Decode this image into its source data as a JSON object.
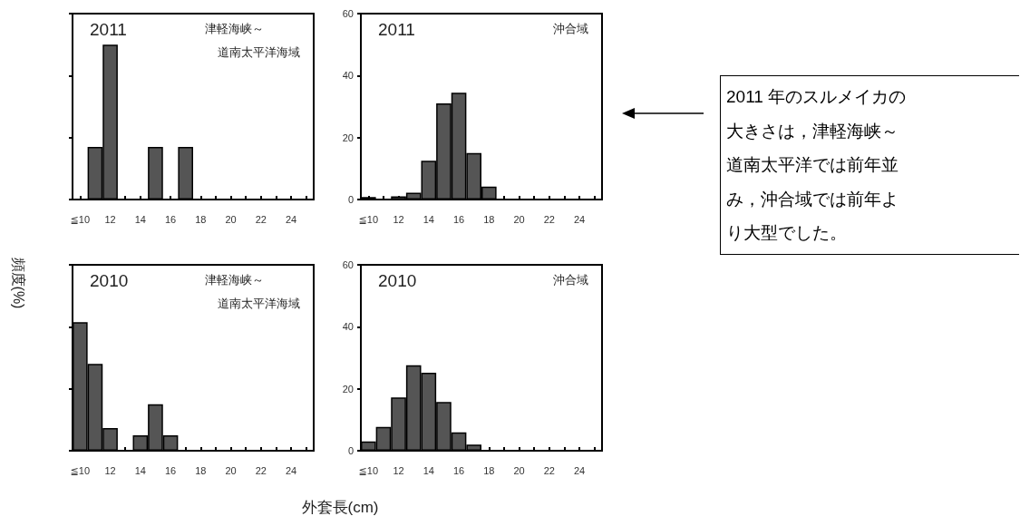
{
  "chart_data": [
    {
      "type": "bar",
      "title": "2011",
      "annotations": [
        "津軽海峡～",
        "道南太平洋海域"
      ],
      "categories": [
        "≦10",
        null,
        "12",
        null,
        "14",
        null,
        "16",
        null,
        "18",
        null,
        "20",
        null,
        "22",
        null,
        "24",
        null
      ],
      "values": [
        0,
        17,
        50,
        0,
        0,
        17,
        0,
        17,
        0,
        0,
        0,
        0,
        0,
        0,
        0,
        0
      ],
      "color": "#555555",
      "ylim": [
        0,
        60
      ],
      "yticks": [
        0,
        20,
        40,
        60
      ],
      "tick_labels": "x",
      "grid": false
    },
    {
      "type": "bar",
      "title": "2011",
      "annotations": [
        "沖合域"
      ],
      "categories": [
        "≦10",
        null,
        "12",
        null,
        "14",
        null,
        "16",
        null,
        "18",
        null,
        "20",
        null,
        "22",
        null,
        "24",
        null
      ],
      "values": [
        0.8,
        0,
        1,
        2.2,
        12.5,
        31,
        34.5,
        15,
        4.2,
        0,
        0,
        0,
        0,
        0,
        0,
        0
      ],
      "color": "#555555",
      "ylim": [
        0,
        60
      ],
      "yticks": [
        0,
        20,
        40,
        60
      ],
      "grid": false
    },
    {
      "type": "bar",
      "title": "2010",
      "annotations": [
        "津軽海峡～",
        "道南太平洋海域"
      ],
      "categories": [
        "≦10",
        null,
        "12",
        null,
        "14",
        null,
        "16",
        null,
        "18",
        null,
        "20",
        null,
        "22",
        null,
        "24",
        null
      ],
      "values": [
        41.5,
        28,
        7.3,
        0,
        5,
        15,
        5,
        0,
        0,
        0,
        0,
        0,
        0,
        0,
        0,
        0
      ],
      "color": "#555555",
      "ylim": [
        0,
        60
      ],
      "yticks": [
        0,
        20,
        40,
        60
      ],
      "tick_labels": "x",
      "grid": false
    },
    {
      "type": "bar",
      "title": "2010",
      "annotations": [
        "沖合域"
      ],
      "categories": [
        "≦10",
        null,
        "12",
        null,
        "14",
        null,
        "16",
        null,
        "18",
        null,
        "20",
        null,
        "22",
        null,
        "24",
        null
      ],
      "values": [
        3,
        7.7,
        17.2,
        27.6,
        25.2,
        15.7,
        5.9,
        2,
        0,
        0,
        0,
        0,
        0,
        0,
        0,
        0
      ],
      "color": "#555555",
      "ylim": [
        0,
        60
      ],
      "yticks": [
        0,
        20,
        40,
        60
      ],
      "grid": false
    },
    {
      "type": "other",
      "xlabel": "外套長(cm)",
      "ylabel": "頻度(%)",
      "annotations": [
        "2011 年のスルメイカの大きさは，津軽海峡～道南太平洋では前年並み，沖合域では前年より大型でした。"
      ]
    }
  ]
}
